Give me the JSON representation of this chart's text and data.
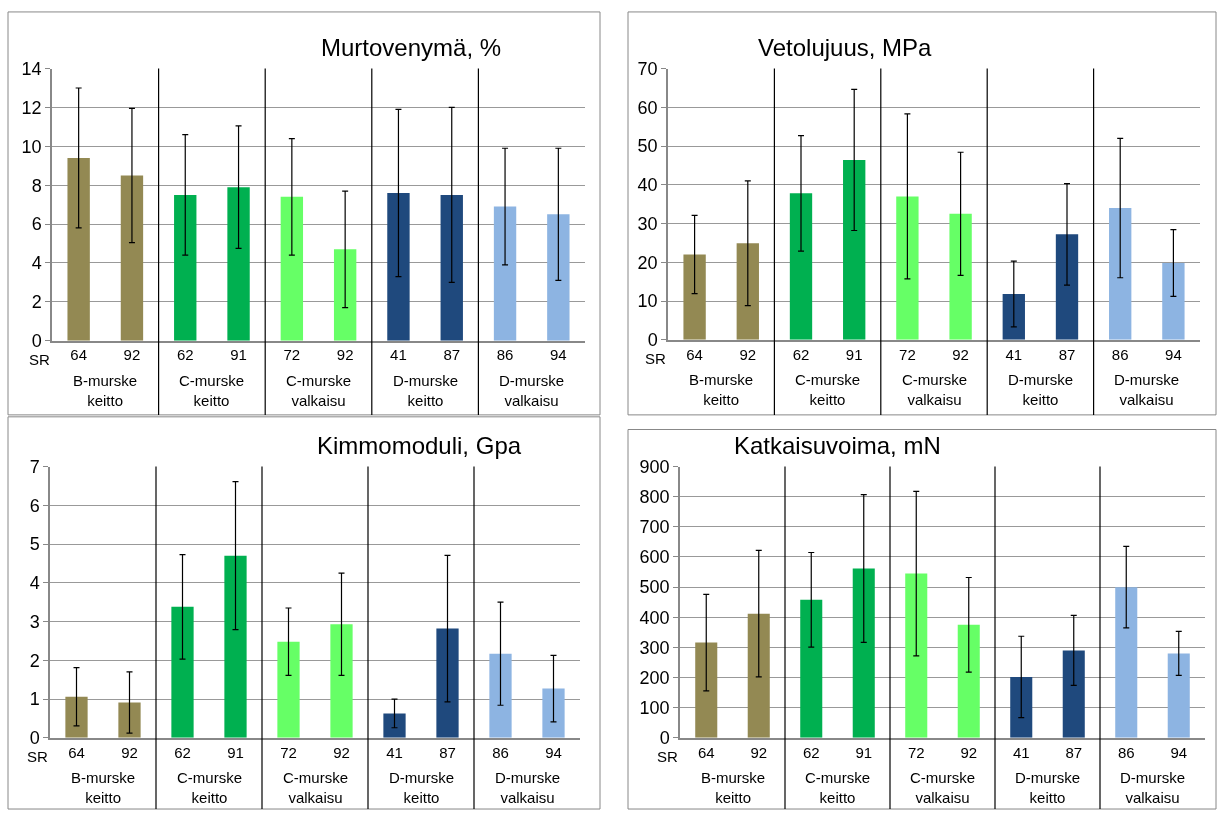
{
  "chart_data": [
    {
      "type": "bar",
      "title": "Murtovenymä, %",
      "categories": [
        "64",
        "92",
        "62",
        "91",
        "72",
        "92",
        "41",
        "87",
        "86",
        "94"
      ],
      "values": [
        9.4,
        8.5,
        7.5,
        7.9,
        7.4,
        4.7,
        7.6,
        7.5,
        6.9,
        6.5
      ],
      "errors": [
        3.6,
        3.45,
        3.1,
        3.15,
        3.0,
        3.0,
        4.3,
        4.5,
        3.0,
        3.4
      ],
      "colors": [
        "#938953",
        "#938953",
        "#00b050",
        "#00b050",
        "#66ff66",
        "#66ff66",
        "#1f497d",
        "#1f497d",
        "#8db4e2",
        "#8db4e2"
      ],
      "ylim": [
        0,
        14
      ],
      "yticks": [
        0,
        2,
        4,
        6,
        8,
        10,
        12,
        14
      ],
      "grid": "y",
      "annotations": [
        "SR",
        "B-murske keitto",
        "C-murske keitto",
        "C-murske valkaisu",
        "D-murske keitto",
        "D-murske valkaisu"
      ]
    },
    {
      "type": "bar",
      "title": "Vetolujuus, MPa",
      "categories": [
        "64",
        "92",
        "62",
        "91",
        "72",
        "92",
        "41",
        "87",
        "86",
        "94"
      ],
      "values": [
        22.0,
        24.9,
        37.8,
        46.4,
        37.0,
        32.5,
        11.8,
        27.2,
        34.0,
        19.8
      ],
      "errors": [
        10.1,
        16.1,
        14.9,
        18.2,
        21.3,
        15.9,
        8.5,
        13.1,
        18.0,
        8.6
      ],
      "colors": [
        "#938953",
        "#938953",
        "#00b050",
        "#00b050",
        "#66ff66",
        "#66ff66",
        "#1f497d",
        "#1f497d",
        "#8db4e2",
        "#8db4e2"
      ],
      "ylim": [
        0,
        70
      ],
      "yticks": [
        0,
        10,
        20,
        30,
        40,
        50,
        60,
        70
      ],
      "grid": "y",
      "annotations": [
        "SR",
        "B-murske keitto",
        "C-murske keitto",
        "C-murske valkaisu",
        "D-murske keitto",
        "D-murske valkaisu"
      ]
    },
    {
      "type": "bar",
      "title": "Kimmomoduli, Gpa",
      "categories": [
        "64",
        "92",
        "62",
        "91",
        "72",
        "92",
        "41",
        "87",
        "86",
        "94"
      ],
      "values": [
        1.06,
        0.91,
        3.38,
        4.7,
        2.48,
        2.93,
        0.63,
        2.82,
        2.17,
        1.27
      ],
      "errors": [
        0.75,
        0.79,
        1.35,
        1.91,
        0.87,
        1.32,
        0.37,
        1.89,
        1.33,
        0.86
      ],
      "colors": [
        "#938953",
        "#938953",
        "#00b050",
        "#00b050",
        "#66ff66",
        "#66ff66",
        "#1f497d",
        "#1f497d",
        "#8db4e2",
        "#8db4e2"
      ],
      "ylim": [
        0,
        7
      ],
      "yticks": [
        0,
        1,
        2,
        3,
        4,
        5,
        6,
        7
      ],
      "grid": "y",
      "annotations": [
        "SR",
        "B-murske keitto",
        "C-murske keitto",
        "C-murske valkaisu",
        "D-murske keitto",
        "D-murske valkaisu"
      ]
    },
    {
      "type": "bar",
      "title": "Katkaisuvoima, mN",
      "categories": [
        "64",
        "92",
        "62",
        "91",
        "72",
        "92",
        "41",
        "87",
        "86",
        "94"
      ],
      "values": [
        316,
        412,
        458,
        562,
        545,
        375,
        202,
        290,
        500,
        280
      ],
      "errors": [
        160,
        210,
        157,
        245,
        273,
        157,
        135,
        116,
        135,
        73
      ],
      "colors": [
        "#938953",
        "#938953",
        "#00b050",
        "#00b050",
        "#66ff66",
        "#66ff66",
        "#1f497d",
        "#1f497d",
        "#8db4e2",
        "#8db4e2"
      ],
      "ylim": [
        0,
        900
      ],
      "yticks": [
        0,
        100,
        200,
        300,
        400,
        500,
        600,
        700,
        800,
        900
      ],
      "grid": "y",
      "annotations": [
        "SR",
        "B-murske keitto",
        "C-murske keitto",
        "C-murske valkaisu",
        "D-murske keitto",
        "D-murske valkaisu"
      ]
    }
  ]
}
